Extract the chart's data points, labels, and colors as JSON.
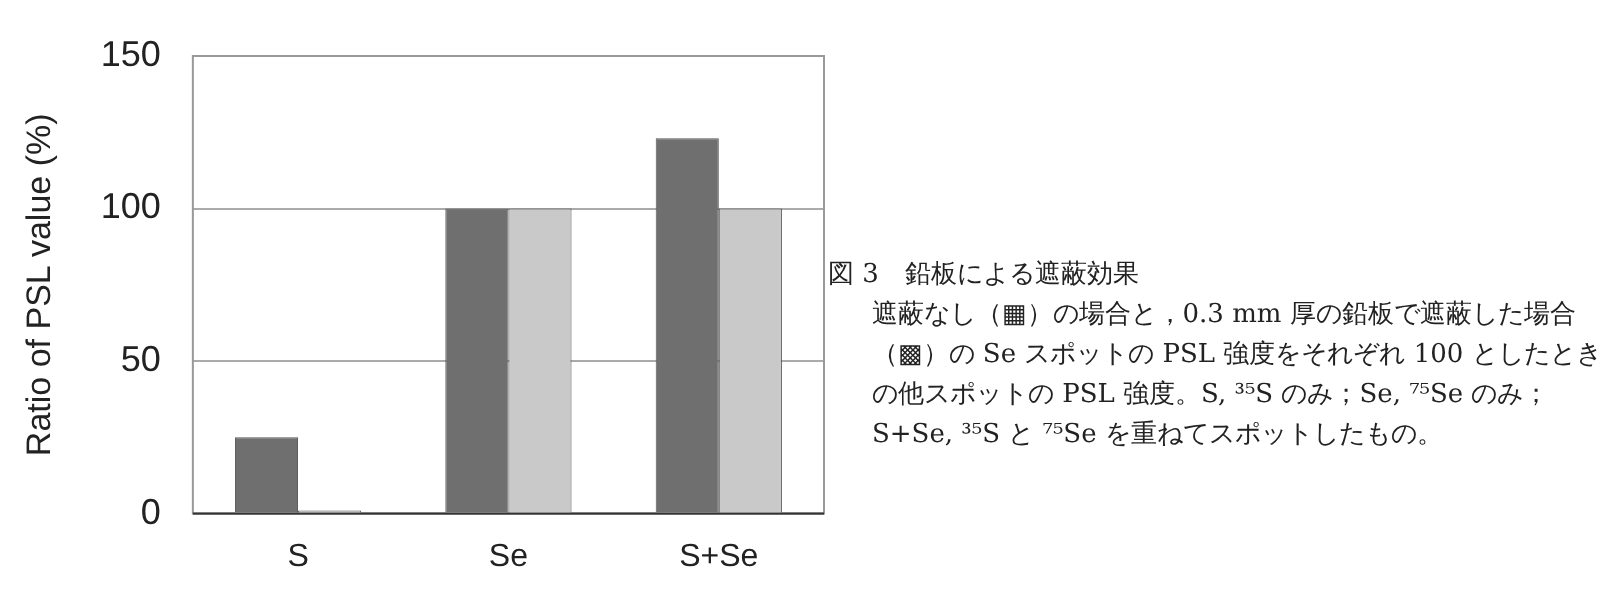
{
  "chart_data": {
    "type": "bar",
    "title": "図 3　鉛板による遮蔽効果",
    "annotations": [
      "遮蔽なし（▦）の場合と，0.3 mm 厚の鉛板で遮蔽した場合（▩）の Se スポットの PSL 強度をそれぞれ 100 としたときの他スポットの PSL 強度。S, ³⁵S のみ；Se, ⁷⁵Se のみ；S+Se, ³⁵S と ⁷⁵Se を重ねてスポットしたもの。"
    ],
    "ylabel": "Ratio of PSL value (%)",
    "categories": [
      "S",
      "Se",
      "S+Se"
    ],
    "series": [
      {
        "color": "#6f6f6f",
        "values": [
          25,
          100,
          123
        ]
      },
      {
        "color": "#c9c9c9",
        "values": [
          1,
          100,
          100
        ]
      }
    ],
    "ylim": [
      0,
      150
    ],
    "yticks": [
      0,
      50,
      100,
      150
    ],
    "grid": "y",
    "legend": false
  }
}
